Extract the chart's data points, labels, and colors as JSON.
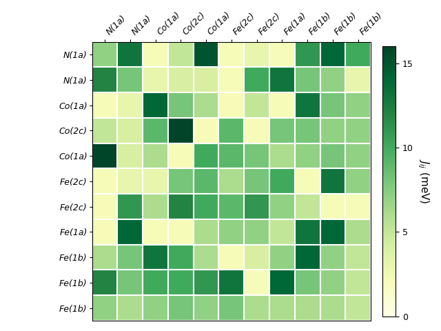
{
  "labels": [
    "N(1a)",
    "N(1a)",
    "Co(1a)",
    "Co(2c)",
    "Co(1a)",
    "Fe(2c)",
    "Fe(2c)",
    "Fe(1a)",
    "Fe(1b)",
    "Fe(1b)",
    "Fe(1b)"
  ],
  "matrix": [
    [
      7,
      13,
      2,
      5,
      15,
      2,
      3,
      2,
      11,
      14,
      10
    ],
    [
      12,
      8,
      3,
      4,
      4,
      2,
      10,
      13,
      8,
      7,
      3
    ],
    [
      2,
      3,
      14,
      8,
      6,
      2,
      5,
      2,
      13,
      8,
      7
    ],
    [
      5,
      4,
      9,
      16,
      2,
      9,
      2,
      8,
      8,
      7,
      7
    ],
    [
      16,
      4,
      6,
      2,
      10,
      9,
      8,
      6,
      7,
      8,
      7
    ],
    [
      2,
      3,
      3,
      8,
      9,
      6,
      8,
      10,
      2,
      13,
      7
    ],
    [
      2,
      11,
      6,
      12,
      10,
      9,
      11,
      7,
      5,
      2,
      2
    ],
    [
      2,
      14,
      2,
      2,
      6,
      7,
      7,
      5,
      13,
      14,
      6
    ],
    [
      6,
      8,
      13,
      10,
      6,
      2,
      4,
      7,
      14,
      7,
      5
    ],
    [
      12,
      8,
      10,
      10,
      11,
      13,
      2,
      14,
      8,
      7,
      5
    ],
    [
      7,
      6,
      7,
      8,
      7,
      8,
      6,
      6,
      6,
      6,
      5
    ]
  ],
  "vmin": 0,
  "vmax": 16,
  "cmap": "YlGn",
  "colorbar_label": "$J_{ij}$ (meV)",
  "colorbar_ticks": [
    0,
    5,
    10,
    15
  ],
  "title": "",
  "figsize": [
    6.4,
    4.8
  ],
  "dpi": 100,
  "tick_fontsize": 9,
  "cbar_fontsize": 11,
  "cbar_tick_fontsize": 9
}
